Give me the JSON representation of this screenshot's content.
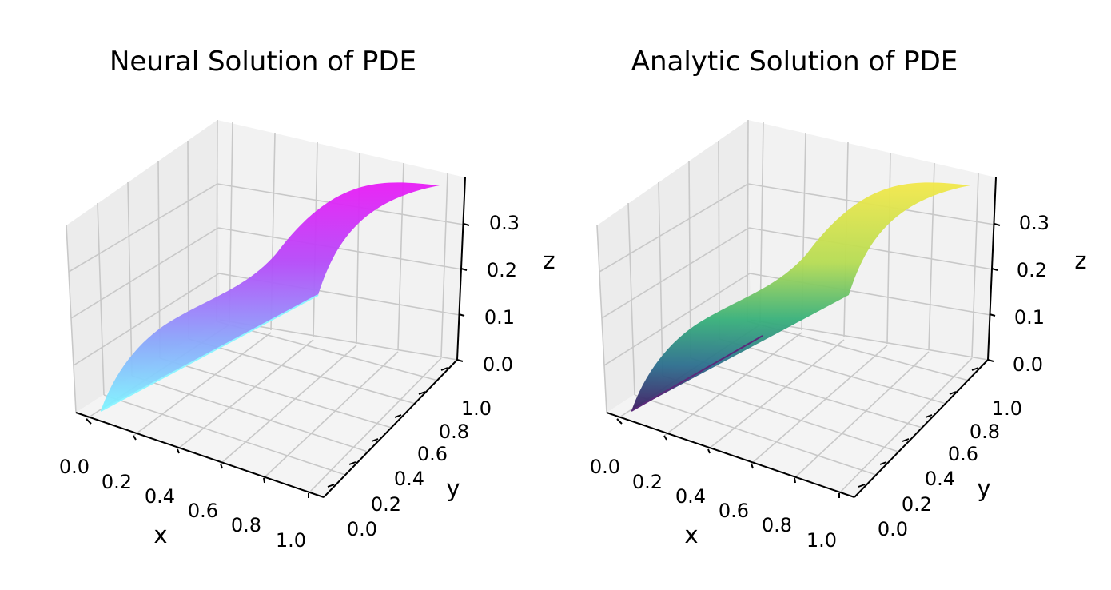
{
  "chart_data": [
    {
      "type": "surface3d",
      "title": "Neural Solution of PDE",
      "xlabel": "x",
      "ylabel": "y",
      "zlabel": "z",
      "x_ticks": [
        "0.0",
        "0.2",
        "0.4",
        "0.6",
        "0.8",
        "1.0"
      ],
      "y_ticks": [
        "0.0",
        "0.2",
        "0.4",
        "0.6",
        "0.8",
        "1.0"
      ],
      "z_ticks": [
        "0.0",
        "0.1",
        "0.2",
        "0.3"
      ],
      "xlim": [
        0,
        1
      ],
      "ylim": [
        0,
        1
      ],
      "zlim": [
        0,
        0.36
      ],
      "colormap": "cool",
      "surface_z_at_y": [
        {
          "y": 0.0,
          "z": 0.0
        },
        {
          "y": 0.1,
          "z": 0.09
        },
        {
          "y": 0.2,
          "z": 0.16
        },
        {
          "y": 0.3,
          "z": 0.21
        },
        {
          "y": 0.4,
          "z": 0.24
        },
        {
          "y": 0.5,
          "z": 0.25
        },
        {
          "y": 0.6,
          "z": 0.24
        },
        {
          "y": 0.7,
          "z": 0.21
        },
        {
          "y": 0.8,
          "z": 0.16
        },
        {
          "y": 0.9,
          "z": 0.09
        },
        {
          "y": 1.0,
          "z": 0.0
        }
      ],
      "surface_slope_in_x": 0.1,
      "grid": true
    },
    {
      "type": "surface3d",
      "title": "Analytic Solution of PDE",
      "xlabel": "x",
      "ylabel": "y",
      "zlabel": "z",
      "x_ticks": [
        "0.0",
        "0.2",
        "0.4",
        "0.6",
        "0.8",
        "1.0"
      ],
      "y_ticks": [
        "0.0",
        "0.2",
        "0.4",
        "0.6",
        "0.8",
        "1.0"
      ],
      "z_ticks": [
        "0.0",
        "0.1",
        "0.2",
        "0.3"
      ],
      "xlim": [
        0,
        1
      ],
      "ylim": [
        0,
        1
      ],
      "zlim": [
        0,
        0.36
      ],
      "colormap": "viridis",
      "surface_z_at_y": [
        {
          "y": 0.0,
          "z": 0.0
        },
        {
          "y": 0.1,
          "z": 0.09
        },
        {
          "y": 0.2,
          "z": 0.16
        },
        {
          "y": 0.3,
          "z": 0.21
        },
        {
          "y": 0.4,
          "z": 0.24
        },
        {
          "y": 0.5,
          "z": 0.25
        },
        {
          "y": 0.6,
          "z": 0.24
        },
        {
          "y": 0.7,
          "z": 0.21
        },
        {
          "y": 0.8,
          "z": 0.16
        },
        {
          "y": 0.9,
          "z": 0.09
        },
        {
          "y": 1.0,
          "z": 0.0
        }
      ],
      "surface_slope_in_x": 0.1,
      "grid": true
    }
  ]
}
